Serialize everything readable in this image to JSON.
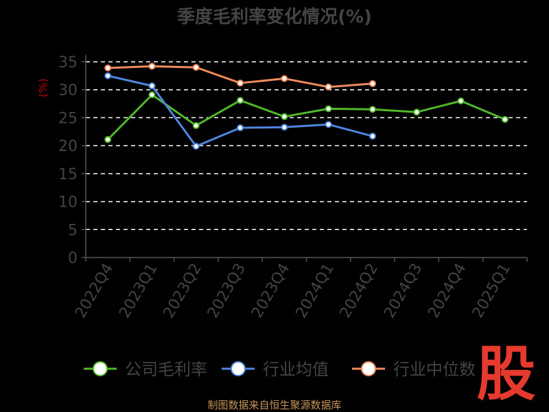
{
  "chart_data": {
    "type": "line",
    "title": "季度毛利率变化情况(%)",
    "ylabel": "(%)",
    "ylim": [
      0,
      35
    ],
    "yticks": [
      0,
      5,
      10,
      15,
      20,
      25,
      30,
      35
    ],
    "grid": true,
    "legend": "bottom",
    "categories": [
      "2022Q4",
      "2023Q1",
      "2023Q2",
      "2023Q3",
      "2023Q4",
      "2024Q1",
      "2024Q2",
      "2024Q3",
      "2024Q4",
      "2025Q1"
    ],
    "series": [
      {
        "name": "公司毛利率",
        "color": "#52b82a",
        "values": [
          21.1,
          29.1,
          23.6,
          28.1,
          25.2,
          26.6,
          26.5,
          26.0,
          28.0,
          24.7
        ]
      },
      {
        "name": "行业均值",
        "color": "#4f86e0",
        "values": [
          32.5,
          30.7,
          19.9,
          23.2,
          23.3,
          23.8,
          21.7,
          null,
          null,
          null
        ]
      },
      {
        "name": "行业中位数",
        "color": "#f08a5d",
        "values": [
          33.9,
          34.2,
          34.0,
          31.2,
          32.0,
          30.5,
          31.1,
          null,
          null,
          null
        ]
      }
    ]
  },
  "source_text": "制图数据来自恒生聚源数据库",
  "logo_text": "股"
}
